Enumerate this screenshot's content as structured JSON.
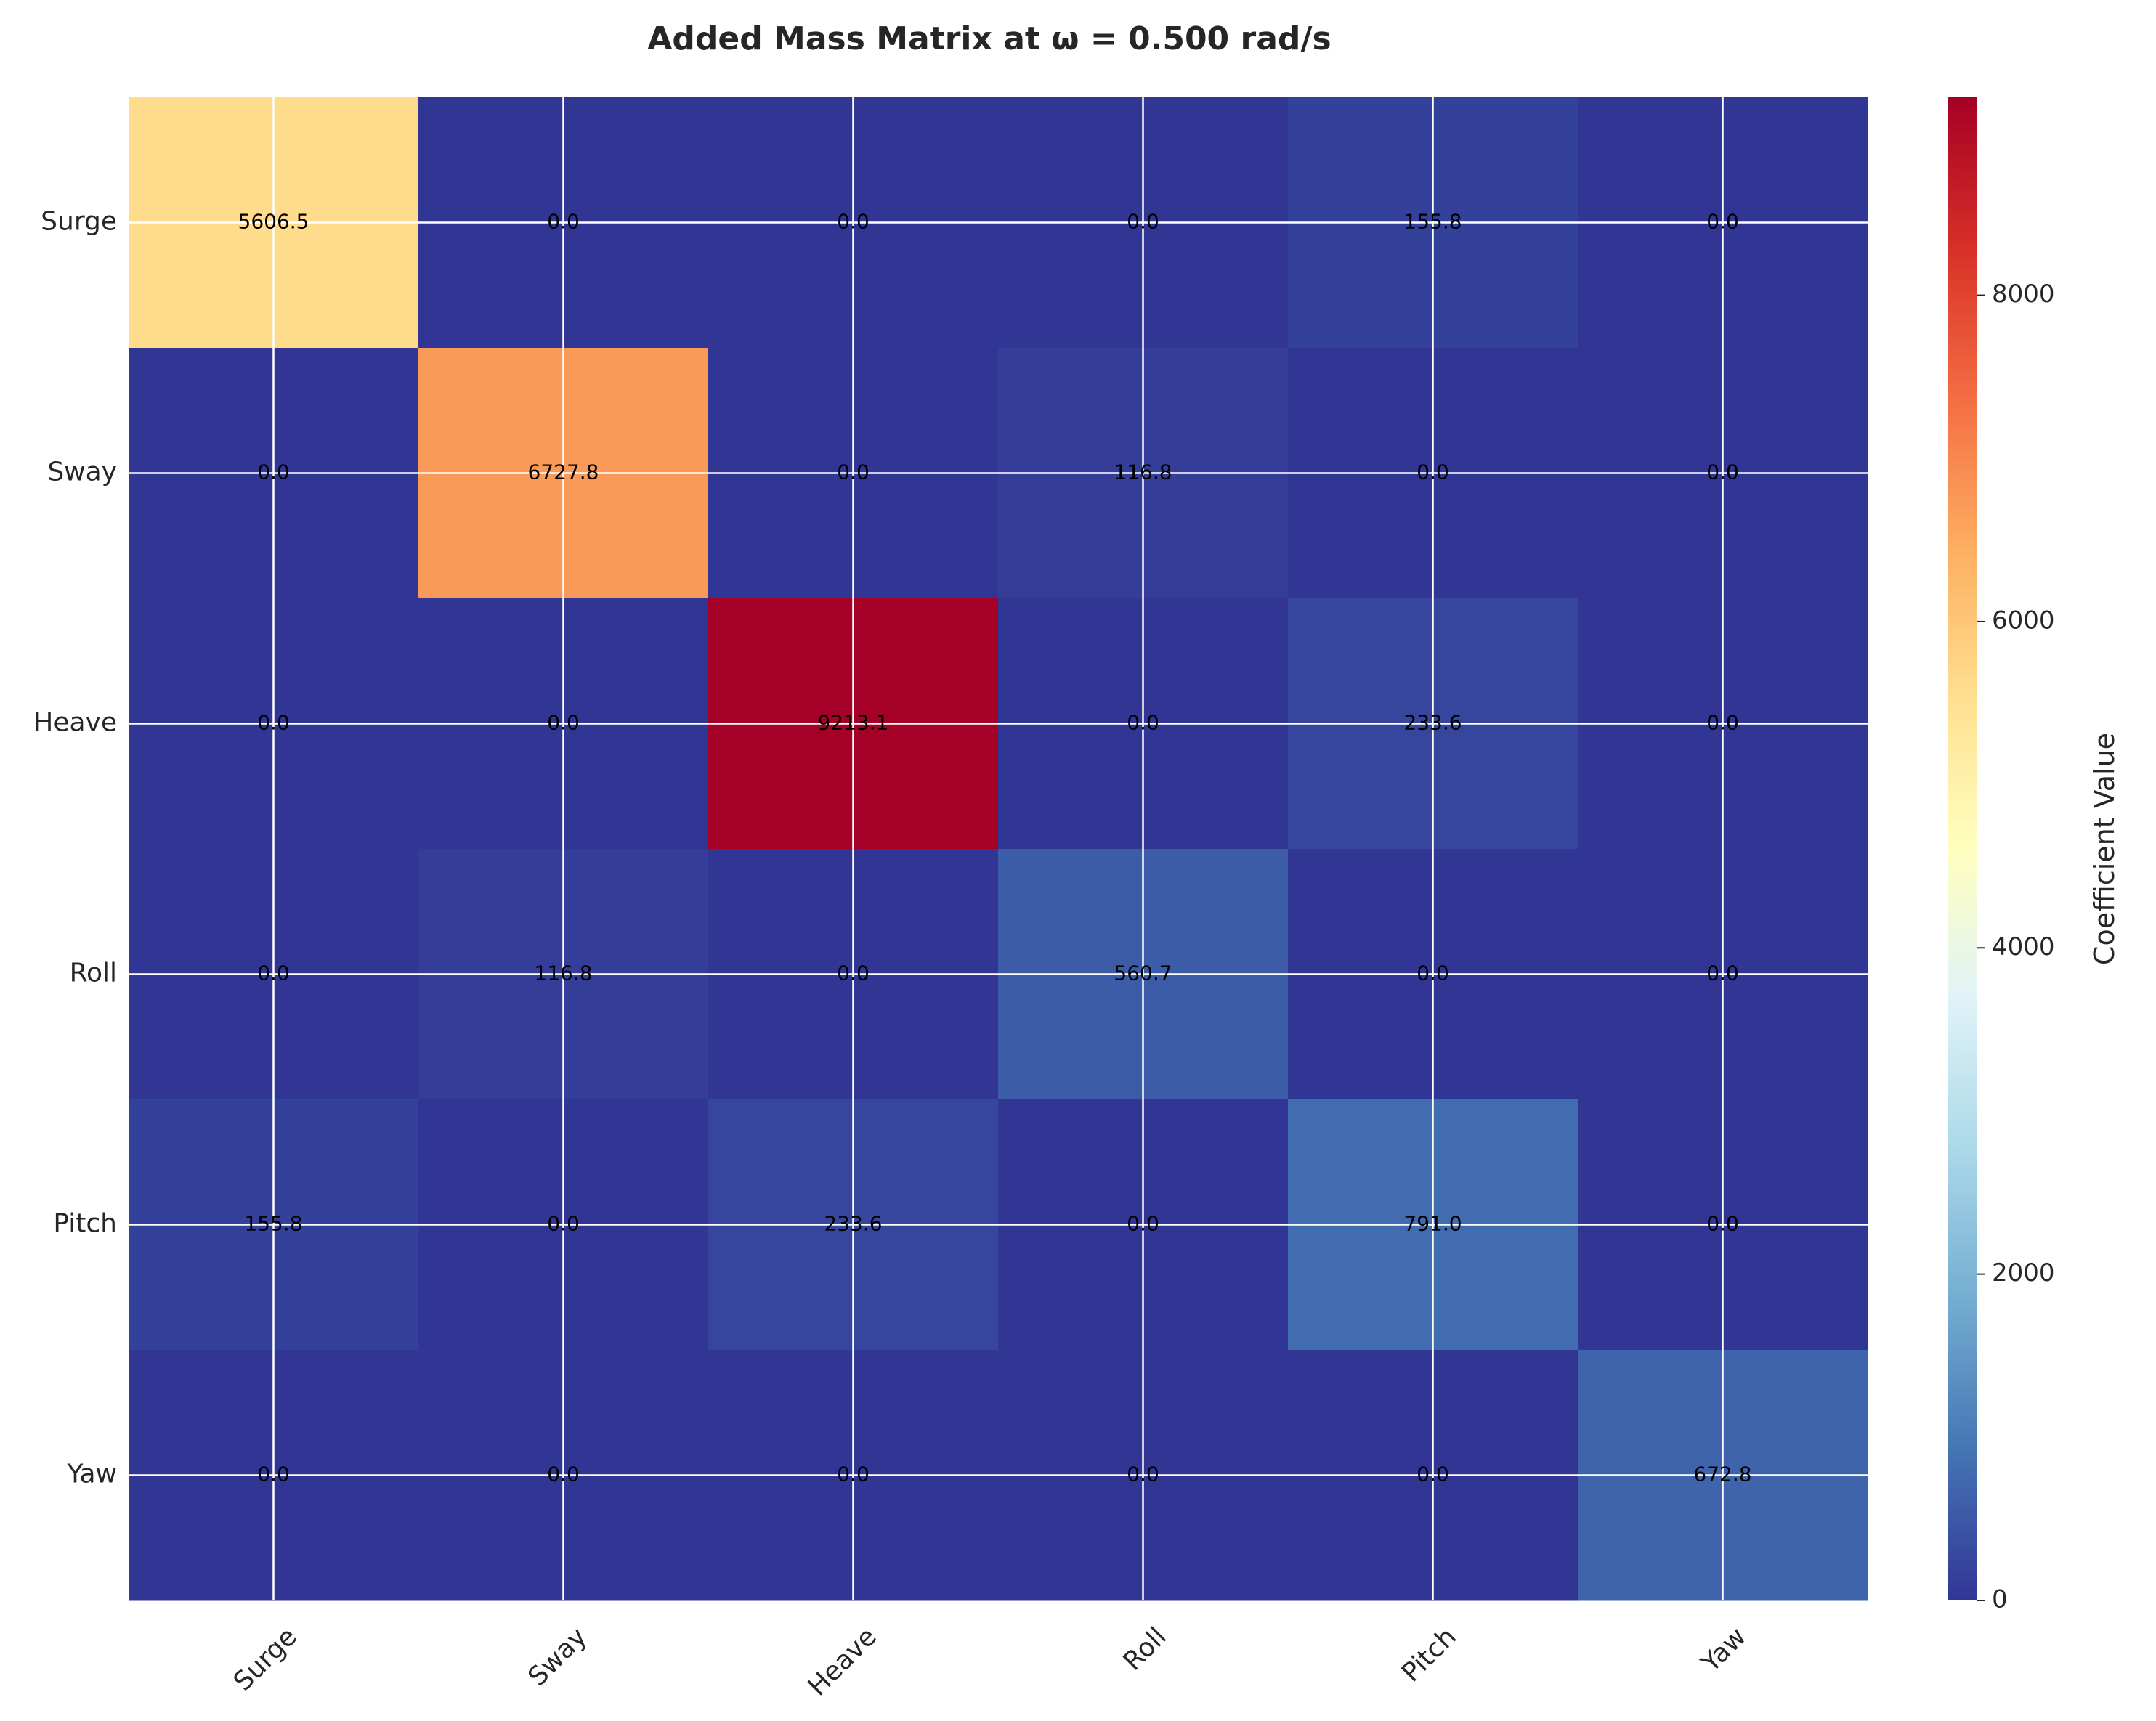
{
  "chart_data": {
    "type": "heatmap",
    "title": "Added Mass Matrix at ω = 0.500 rad/s",
    "x_categories": [
      "Surge",
      "Sway",
      "Heave",
      "Roll",
      "Pitch",
      "Yaw"
    ],
    "y_categories": [
      "Surge",
      "Sway",
      "Heave",
      "Roll",
      "Pitch",
      "Yaw"
    ],
    "values": [
      [
        5606.5,
        0.0,
        0.0,
        0.0,
        155.8,
        0.0
      ],
      [
        0.0,
        6727.8,
        0.0,
        116.8,
        0.0,
        0.0
      ],
      [
        0.0,
        0.0,
        9213.1,
        0.0,
        233.6,
        0.0
      ],
      [
        0.0,
        116.8,
        0.0,
        560.7,
        0.0,
        0.0
      ],
      [
        155.8,
        0.0,
        233.6,
        0.0,
        791.0,
        0.0
      ],
      [
        0.0,
        0.0,
        0.0,
        0.0,
        0.0,
        672.8
      ]
    ],
    "cell_labels": [
      [
        "5606.5",
        "0.0",
        "0.0",
        "0.0",
        "155.8",
        "0.0"
      ],
      [
        "0.0",
        "6727.8",
        "0.0",
        "116.8",
        "0.0",
        "0.0"
      ],
      [
        "0.0",
        "0.0",
        "9213.1",
        "0.0",
        "233.6",
        "0.0"
      ],
      [
        "0.0",
        "116.8",
        "0.0",
        "560.7",
        "0.0",
        "0.0"
      ],
      [
        "155.8",
        "0.0",
        "233.6",
        "0.0",
        "791.0",
        "0.0"
      ],
      [
        "0.0",
        "0.0",
        "0.0",
        "0.0",
        "0.0",
        "672.8"
      ]
    ],
    "colormap": "RdYlBu_r",
    "colorbar": {
      "label": "Coefficient Value",
      "range": [
        0,
        9213.1
      ],
      "ticks": [
        0,
        2000,
        4000,
        6000,
        8000
      ],
      "tick_labels": [
        "0",
        "2000",
        "4000",
        "6000",
        "8000"
      ]
    },
    "grid": true
  }
}
